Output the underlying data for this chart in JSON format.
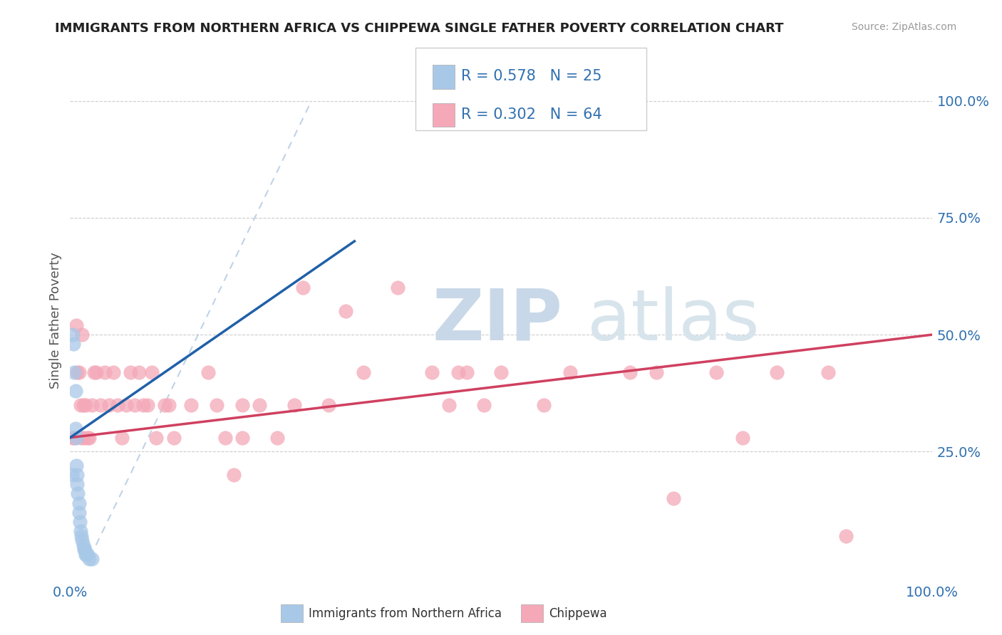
{
  "title": "IMMIGRANTS FROM NORTHERN AFRICA VS CHIPPEWA SINGLE FATHER POVERTY CORRELATION CHART",
  "source": "Source: ZipAtlas.com",
  "ylabel": "Single Father Poverty",
  "legend_label1": "Immigrants from Northern Africa",
  "legend_label2": "Chippewa",
  "r1": 0.578,
  "n1": 25,
  "r2": 0.302,
  "n2": 64,
  "color_blue": "#a8c8e8",
  "color_pink": "#f4a8b8",
  "color_blue_line": "#2060a8",
  "color_pink_line": "#d04060",
  "color_dashed": "#b0c8e0",
  "blue_points": [
    [
      0.002,
      0.2
    ],
    [
      0.003,
      0.5
    ],
    [
      0.004,
      0.48
    ],
    [
      0.005,
      0.42
    ],
    [
      0.006,
      0.38
    ],
    [
      0.006,
      0.3
    ],
    [
      0.007,
      0.28
    ],
    [
      0.007,
      0.22
    ],
    [
      0.008,
      0.2
    ],
    [
      0.008,
      0.18
    ],
    [
      0.009,
      0.16
    ],
    [
      0.01,
      0.14
    ],
    [
      0.01,
      0.12
    ],
    [
      0.011,
      0.1
    ],
    [
      0.012,
      0.08
    ],
    [
      0.013,
      0.07
    ],
    [
      0.014,
      0.06
    ],
    [
      0.015,
      0.05
    ],
    [
      0.016,
      0.04
    ],
    [
      0.017,
      0.04
    ],
    [
      0.018,
      0.03
    ],
    [
      0.019,
      0.03
    ],
    [
      0.02,
      0.03
    ],
    [
      0.022,
      0.02
    ],
    [
      0.025,
      0.02
    ]
  ],
  "pink_points": [
    [
      0.003,
      0.28
    ],
    [
      0.005,
      0.28
    ],
    [
      0.007,
      0.52
    ],
    [
      0.008,
      0.42
    ],
    [
      0.01,
      0.42
    ],
    [
      0.012,
      0.35
    ],
    [
      0.013,
      0.28
    ],
    [
      0.014,
      0.5
    ],
    [
      0.015,
      0.35
    ],
    [
      0.016,
      0.28
    ],
    [
      0.018,
      0.35
    ],
    [
      0.02,
      0.28
    ],
    [
      0.022,
      0.28
    ],
    [
      0.025,
      0.35
    ],
    [
      0.028,
      0.42
    ],
    [
      0.03,
      0.42
    ],
    [
      0.035,
      0.35
    ],
    [
      0.04,
      0.42
    ],
    [
      0.045,
      0.35
    ],
    [
      0.05,
      0.42
    ],
    [
      0.055,
      0.35
    ],
    [
      0.06,
      0.28
    ],
    [
      0.065,
      0.35
    ],
    [
      0.07,
      0.42
    ],
    [
      0.075,
      0.35
    ],
    [
      0.08,
      0.42
    ],
    [
      0.085,
      0.35
    ],
    [
      0.09,
      0.35
    ],
    [
      0.095,
      0.42
    ],
    [
      0.1,
      0.28
    ],
    [
      0.11,
      0.35
    ],
    [
      0.115,
      0.35
    ],
    [
      0.12,
      0.28
    ],
    [
      0.14,
      0.35
    ],
    [
      0.16,
      0.42
    ],
    [
      0.17,
      0.35
    ],
    [
      0.18,
      0.28
    ],
    [
      0.19,
      0.2
    ],
    [
      0.2,
      0.35
    ],
    [
      0.2,
      0.28
    ],
    [
      0.22,
      0.35
    ],
    [
      0.24,
      0.28
    ],
    [
      0.26,
      0.35
    ],
    [
      0.27,
      0.6
    ],
    [
      0.3,
      0.35
    ],
    [
      0.32,
      0.55
    ],
    [
      0.34,
      0.42
    ],
    [
      0.38,
      0.6
    ],
    [
      0.42,
      0.42
    ],
    [
      0.44,
      0.35
    ],
    [
      0.45,
      0.42
    ],
    [
      0.46,
      0.42
    ],
    [
      0.48,
      0.35
    ],
    [
      0.5,
      0.42
    ],
    [
      0.55,
      0.35
    ],
    [
      0.58,
      0.42
    ],
    [
      0.65,
      0.42
    ],
    [
      0.68,
      0.42
    ],
    [
      0.7,
      0.15
    ],
    [
      0.75,
      0.42
    ],
    [
      0.78,
      0.28
    ],
    [
      0.82,
      0.42
    ],
    [
      0.88,
      0.42
    ],
    [
      0.9,
      0.07
    ]
  ],
  "blue_line": [
    0.0,
    0.33
  ],
  "blue_line_y": [
    0.28,
    0.7
  ],
  "pink_line_x": [
    0.0,
    1.0
  ],
  "pink_line_y": [
    0.28,
    0.5
  ],
  "dash_line_x": [
    0.03,
    0.28
  ],
  "dash_line_y": [
    0.05,
    1.0
  ],
  "xlim": [
    0.0,
    1.0
  ],
  "ylim": [
    -0.02,
    1.08
  ],
  "ytick_positions": [
    0.0,
    0.25,
    0.5,
    0.75,
    1.0
  ],
  "ytick_labels_right": [
    "",
    "25.0%",
    "50.0%",
    "75.0%",
    "100.0%"
  ],
  "background_color": "#ffffff"
}
